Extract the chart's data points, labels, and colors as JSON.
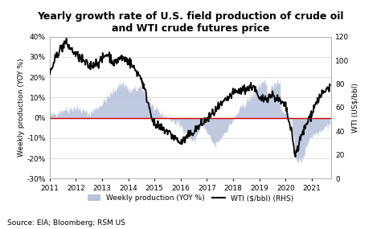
{
  "title": "Yearly growth rate of U.S. field production of crude oil\nand WTI crude futures price",
  "ylabel_left": "Weekly production (YOY %)",
  "ylabel_right": "WTI (US$/bbl)",
  "source": "Source: EIA; Bloomberg; RSM US",
  "legend_area": "Weekly production (YOY %)",
  "legend_line": "WTI ($/bbl) (RHS)",
  "ylim_left": [
    -0.3,
    0.4
  ],
  "ylim_right": [
    0,
    120
  ],
  "yticks_left": [
    -0.3,
    -0.2,
    -0.1,
    0.0,
    0.1,
    0.2,
    0.3,
    0.4
  ],
  "ytick_labels_left": [
    "-30%",
    "-20%",
    "-10%",
    "0%",
    "10%",
    "20%",
    "30%",
    "40%"
  ],
  "yticks_right": [
    0,
    20,
    40,
    60,
    80,
    100,
    120
  ],
  "area_color": "#b8c4dc",
  "line_color": "#000000",
  "zero_line_color": "#cc0000",
  "title_fontsize": 9,
  "title_fontweight": "bold"
}
